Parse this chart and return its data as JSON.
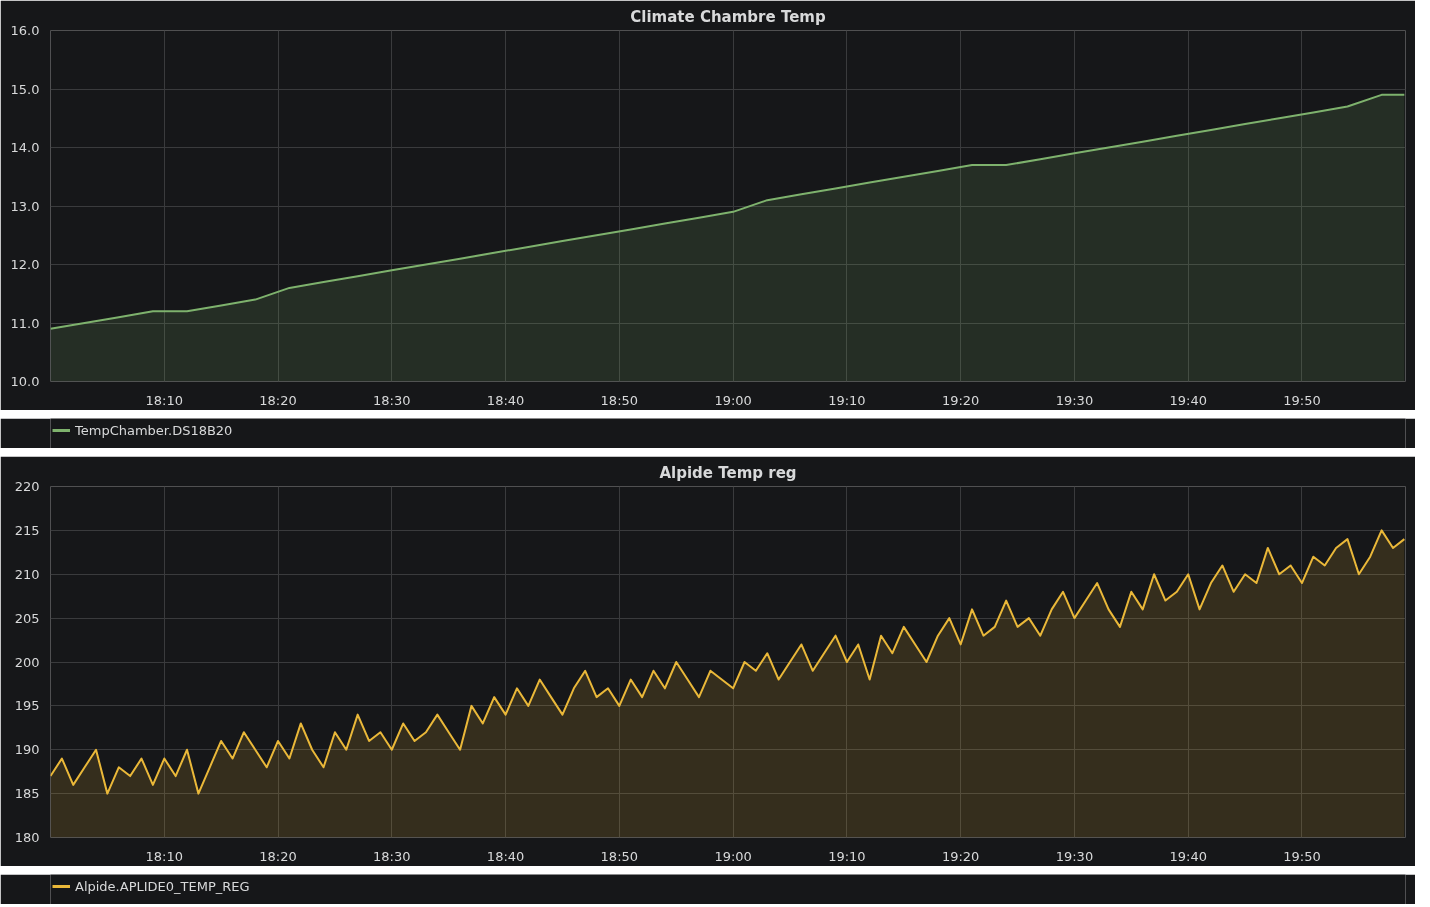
{
  "chart_data": [
    {
      "type": "area",
      "title": "Climate Chambre Temp",
      "legend": "bottom",
      "grid": true,
      "marker": "none",
      "line_style": "solid",
      "xlim": [
        18.0,
        19.985
      ],
      "ylim": [
        10,
        16
      ],
      "xticks": [
        {
          "value": 18.1667,
          "label": "18:10"
        },
        {
          "value": 18.3333,
          "label": "18:20"
        },
        {
          "value": 18.5,
          "label": "18:30"
        },
        {
          "value": 18.6667,
          "label": "18:40"
        },
        {
          "value": 18.8333,
          "label": "18:50"
        },
        {
          "value": 19.0,
          "label": "19:00"
        },
        {
          "value": 19.1667,
          "label": "19:10"
        },
        {
          "value": 19.3333,
          "label": "19:20"
        },
        {
          "value": 19.5,
          "label": "19:30"
        },
        {
          "value": 19.6667,
          "label": "19:40"
        },
        {
          "value": 19.8333,
          "label": "19:50"
        }
      ],
      "yticks": [
        {
          "value": 10,
          "label": "10.0"
        },
        {
          "value": 11,
          "label": "11.0"
        },
        {
          "value": 12,
          "label": "12.0"
        },
        {
          "value": 13,
          "label": "13.0"
        },
        {
          "value": 14,
          "label": "14.0"
        },
        {
          "value": 15,
          "label": "15.0"
        },
        {
          "value": 16,
          "label": "16.0"
        }
      ],
      "x": [
        18.0,
        18.05,
        18.1,
        18.15,
        18.2,
        18.25,
        18.3,
        18.35,
        18.4,
        18.45,
        18.5,
        18.55,
        18.6,
        18.65,
        18.7,
        18.75,
        18.8,
        18.85,
        18.9,
        18.95,
        19.0,
        19.05,
        19.1,
        19.15,
        19.2,
        19.25,
        19.3,
        19.35,
        19.4,
        19.45,
        19.5,
        19.55,
        19.6,
        19.65,
        19.7,
        19.75,
        19.8,
        19.85,
        19.9,
        19.95,
        19.9833
      ],
      "series": [
        {
          "name": "TempChamber.DS18B20",
          "color": "#7eb26d",
          "values": [
            10.9,
            11.0,
            11.1,
            11.2,
            11.2,
            11.3,
            11.4,
            11.6,
            11.7,
            11.8,
            11.9,
            12.0,
            12.1,
            12.2,
            12.3,
            12.4,
            12.5,
            12.6,
            12.7,
            12.8,
            12.9,
            13.1,
            13.2,
            13.3,
            13.4,
            13.5,
            13.6,
            13.7,
            13.7,
            13.8,
            13.9,
            14.0,
            14.1,
            14.2,
            14.3,
            14.4,
            14.5,
            14.6,
            14.7,
            14.9,
            14.9
          ]
        }
      ]
    },
    {
      "type": "area",
      "title": "Alpide Temp reg",
      "legend": "bottom",
      "grid": true,
      "marker": "none",
      "line_style": "solid",
      "xlim": [
        18.0,
        19.985
      ],
      "ylim": [
        180,
        220
      ],
      "xticks": [
        {
          "value": 18.1667,
          "label": "18:10"
        },
        {
          "value": 18.3333,
          "label": "18:20"
        },
        {
          "value": 18.5,
          "label": "18:30"
        },
        {
          "value": 18.6667,
          "label": "18:40"
        },
        {
          "value": 18.8333,
          "label": "18:50"
        },
        {
          "value": 19.0,
          "label": "19:00"
        },
        {
          "value": 19.1667,
          "label": "19:10"
        },
        {
          "value": 19.3333,
          "label": "19:20"
        },
        {
          "value": 19.5,
          "label": "19:30"
        },
        {
          "value": 19.6667,
          "label": "19:40"
        },
        {
          "value": 19.8333,
          "label": "19:50"
        }
      ],
      "yticks": [
        180,
        185,
        190,
        195,
        200,
        205,
        210,
        215,
        220
      ],
      "x": [
        18.0,
        18.0167,
        18.0333,
        18.05,
        18.0667,
        18.0833,
        18.1,
        18.1167,
        18.1333,
        18.15,
        18.1667,
        18.1833,
        18.2,
        18.2167,
        18.2333,
        18.25,
        18.2667,
        18.2833,
        18.3,
        18.3167,
        18.3333,
        18.35,
        18.3667,
        18.3833,
        18.4,
        18.4167,
        18.4333,
        18.45,
        18.4667,
        18.4833,
        18.5,
        18.5167,
        18.5333,
        18.55,
        18.5667,
        18.5833,
        18.6,
        18.6167,
        18.6333,
        18.65,
        18.6667,
        18.6833,
        18.7,
        18.7167,
        18.7333,
        18.75,
        18.7667,
        18.7833,
        18.8,
        18.8167,
        18.8333,
        18.85,
        18.8667,
        18.8833,
        18.9,
        18.9167,
        18.9333,
        18.95,
        18.9667,
        18.9833,
        19.0,
        19.0167,
        19.0333,
        19.05,
        19.0667,
        19.0833,
        19.1,
        19.1167,
        19.1333,
        19.15,
        19.1667,
        19.1833,
        19.2,
        19.2167,
        19.2333,
        19.25,
        19.2667,
        19.2833,
        19.3,
        19.3167,
        19.3333,
        19.35,
        19.3667,
        19.3833,
        19.4,
        19.4167,
        19.4333,
        19.45,
        19.4667,
        19.4833,
        19.5,
        19.5167,
        19.5333,
        19.55,
        19.5667,
        19.5833,
        19.6,
        19.6167,
        19.6333,
        19.65,
        19.6667,
        19.6833,
        19.7,
        19.7167,
        19.7333,
        19.75,
        19.7667,
        19.7833,
        19.8,
        19.8167,
        19.8333,
        19.85,
        19.8667,
        19.8833,
        19.9,
        19.9167,
        19.9333,
        19.95,
        19.9667,
        19.9833
      ],
      "series": [
        {
          "name": "Alpide.APLIDE0_TEMP_REG",
          "color": "#eab839",
          "values": [
            187,
            189,
            186,
            188,
            190,
            185,
            188,
            187,
            189,
            186,
            189,
            187,
            190,
            185,
            188,
            191,
            189,
            192,
            190,
            188,
            191,
            189,
            193,
            190,
            188,
            192,
            190,
            194,
            191,
            192,
            190,
            193,
            191,
            192,
            194,
            192,
            190,
            195,
            193,
            196,
            194,
            197,
            195,
            198,
            196,
            194,
            197,
            199,
            196,
            197,
            195,
            198,
            196,
            199,
            197,
            200,
            198,
            196,
            199,
            198,
            197,
            200,
            199,
            201,
            198,
            200,
            202,
            199,
            201,
            203,
            200,
            202,
            198,
            203,
            201,
            204,
            202,
            200,
            203,
            205,
            202,
            206,
            203,
            204,
            207,
            204,
            205,
            203,
            206,
            208,
            205,
            207,
            209,
            206,
            204,
            208,
            206,
            210,
            207,
            208,
            210,
            206,
            209,
            211,
            208,
            210,
            209,
            213,
            210,
            211,
            209,
            212,
            211,
            213,
            214,
            210,
            212,
            215,
            213,
            214
          ]
        }
      ]
    }
  ]
}
